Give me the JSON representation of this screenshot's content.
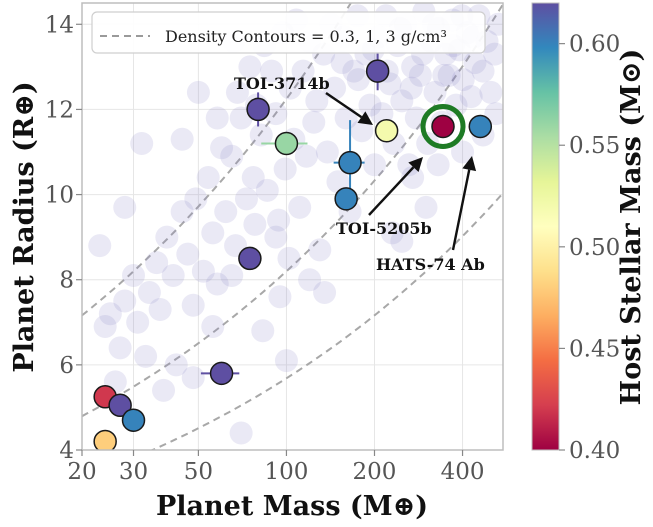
{
  "chart_data": {
    "type": "scatter",
    "title": "",
    "xlabel": "Planet Mass (M⊕)",
    "ylabel": "Planet Radius (R⊕)",
    "x_scale": "log",
    "xlim": [
      20,
      550
    ],
    "ylim": [
      4,
      14.5
    ],
    "x_ticks": [
      20,
      30,
      50,
      100,
      200,
      400
    ],
    "x_tick_labels": [
      "20",
      "30",
      "50",
      "100",
      "200",
      "400"
    ],
    "y_ticks": [
      4,
      6,
      8,
      10,
      12,
      14
    ],
    "y_tick_labels": [
      "4",
      "6",
      "8",
      "10",
      "12",
      "14"
    ],
    "grid": true,
    "legend_position": "top",
    "legend_text": "Density Contours = 0.3, 1, 3 g/cm³",
    "density_contours": [
      0.3,
      1,
      3
    ],
    "colorbar": {
      "label": "Host Stellar Mass (M⊙)",
      "range": [
        0.4,
        0.62
      ],
      "ticks": [
        0.4,
        0.45,
        0.5,
        0.55,
        0.6
      ],
      "tick_labels": [
        "0.40",
        "0.45",
        "0.50",
        "0.55",
        "0.60"
      ],
      "colors": [
        "#9e0142",
        "#d53e4f",
        "#f46d43",
        "#fdae61",
        "#fee08b",
        "#ffffbf",
        "#e6f598",
        "#abdda4",
        "#66c2a5",
        "#3288bd",
        "#5e4fa2"
      ]
    },
    "background_population_color": "#8a84c8",
    "background_population": [
      [
        23,
        8.8
      ],
      [
        24,
        6.9
      ],
      [
        25,
        7.2
      ],
      [
        27,
        6.4
      ],
      [
        28,
        7.5
      ],
      [
        30,
        8.1
      ],
      [
        31,
        7.0
      ],
      [
        33,
        6.2
      ],
      [
        34,
        7.7
      ],
      [
        36,
        8.4
      ],
      [
        37,
        7.3
      ],
      [
        39,
        9.0
      ],
      [
        41,
        8.1
      ],
      [
        42,
        6.0
      ],
      [
        44,
        9.6
      ],
      [
        46,
        8.6
      ],
      [
        48,
        7.4
      ],
      [
        49,
        9.9
      ],
      [
        52,
        8.2
      ],
      [
        54,
        10.4
      ],
      [
        56,
        9.1
      ],
      [
        58,
        7.9
      ],
      [
        60,
        11.1
      ],
      [
        62,
        9.6
      ],
      [
        65,
        10.9
      ],
      [
        67,
        8.8
      ],
      [
        68,
        12.4
      ],
      [
        70,
        11.8
      ],
      [
        73,
        9.9
      ],
      [
        75,
        13.0
      ],
      [
        77,
        10.4
      ],
      [
        79,
        12.1
      ],
      [
        82,
        11.4
      ],
      [
        84,
        13.5
      ],
      [
        86,
        10.1
      ],
      [
        89,
        12.9
      ],
      [
        92,
        11.9
      ],
      [
        94,
        9.4
      ],
      [
        97,
        13.8
      ],
      [
        99,
        10.6
      ],
      [
        103,
        12.5
      ],
      [
        106,
        11.3
      ],
      [
        108,
        14.1
      ],
      [
        111,
        9.7
      ],
      [
        114,
        12.9
      ],
      [
        117,
        10.9
      ],
      [
        120,
        13.6
      ],
      [
        124,
        11.7
      ],
      [
        127,
        12.2
      ],
      [
        130,
        8.7
      ],
      [
        134,
        13.3
      ],
      [
        138,
        11.0
      ],
      [
        142,
        14.0
      ],
      [
        146,
        12.5
      ],
      [
        150,
        10.3
      ],
      [
        155,
        13.1
      ],
      [
        160,
        11.8
      ],
      [
        165,
        9.6
      ],
      [
        170,
        12.9
      ],
      [
        175,
        14.2
      ],
      [
        181,
        11.5
      ],
      [
        187,
        13.3
      ],
      [
        193,
        12.1
      ],
      [
        200,
        10.7
      ],
      [
        206,
        13.7
      ],
      [
        212,
        11.9
      ],
      [
        219,
        14.2
      ],
      [
        226,
        12.6
      ],
      [
        233,
        11.2
      ],
      [
        240,
        13.5
      ],
      [
        248,
        12.2
      ],
      [
        255,
        14.0
      ],
      [
        262,
        10.7
      ],
      [
        270,
        13.0
      ],
      [
        278,
        11.8
      ],
      [
        287,
        12.8
      ],
      [
        295,
        14.3
      ],
      [
        304,
        11.2
      ],
      [
        313,
        13.6
      ],
      [
        322,
        12.4
      ],
      [
        331,
        13.9
      ],
      [
        340,
        11.7
      ],
      [
        350,
        13.3
      ],
      [
        360,
        12.8
      ],
      [
        370,
        14.1
      ],
      [
        380,
        12.1
      ],
      [
        390,
        13.4
      ],
      [
        402,
        12.7
      ],
      [
        415,
        13.8
      ],
      [
        428,
        12.3
      ],
      [
        441,
        13.1
      ],
      [
        455,
        14.2
      ],
      [
        470,
        12.9
      ],
      [
        485,
        13.6
      ],
      [
        500,
        12.4
      ],
      [
        515,
        13.3
      ],
      [
        530,
        14.0
      ],
      [
        158,
        13.7
      ],
      [
        176,
        12.7
      ],
      [
        198,
        13.4
      ],
      [
        221,
        12.9
      ],
      [
        245,
        13.9
      ],
      [
        267,
        12.5
      ],
      [
        292,
        13.3
      ],
      [
        318,
        14.0
      ],
      [
        345,
        12.8
      ],
      [
        372,
        13.5
      ],
      [
        398,
        14.2
      ],
      [
        436,
        13.7
      ],
      [
        66,
        13.6
      ],
      [
        58,
        11.8
      ],
      [
        50,
        12.4
      ],
      [
        44,
        11.3
      ],
      [
        92,
        9.0
      ],
      [
        102,
        8.5
      ],
      [
        120,
        8.0
      ],
      [
        135,
        7.7
      ],
      [
        95,
        7.6
      ],
      [
        78,
        9.3
      ],
      [
        65,
        8.1
      ],
      [
        56,
        6.9
      ],
      [
        70,
        4.4
      ],
      [
        83,
        6.8
      ],
      [
        100,
        6.1
      ],
      [
        48,
        5.7
      ],
      [
        38,
        5.4
      ],
      [
        26,
        5.6
      ],
      [
        28,
        9.7
      ],
      [
        32,
        11.2
      ],
      [
        230,
        9.1
      ],
      [
        300,
        9.7
      ],
      [
        270,
        10.4
      ],
      [
        248,
        8.9
      ],
      [
        330,
        10.7
      ],
      [
        400,
        11.0
      ],
      [
        470,
        11.4
      ],
      [
        520,
        11.9
      ]
    ],
    "series": [
      {
        "label": "",
        "x": 24,
        "y": 5.25,
        "host_mass": 0.42
      },
      {
        "label": "",
        "x": 24,
        "y": 4.2,
        "host_mass": 0.48
      },
      {
        "label": "",
        "x": 27,
        "y": 5.05,
        "host_mass": 0.62
      },
      {
        "label": "",
        "x": 30,
        "y": 4.7,
        "host_mass": 0.6
      },
      {
        "label": "",
        "x": 60,
        "y": 5.8,
        "host_mass": 0.62,
        "xerr": 9
      },
      {
        "label": "",
        "x": 75,
        "y": 8.5,
        "host_mass": 0.62
      },
      {
        "label": "",
        "x": 80,
        "y": 12.0,
        "host_mass": 0.62,
        "yerr": 0.4
      },
      {
        "label": "",
        "x": 100,
        "y": 11.2,
        "host_mass": 0.56,
        "xerr": 18
      },
      {
        "label": "",
        "x": 165,
        "y": 10.75,
        "host_mass": 0.6,
        "yerr": 1.0,
        "xerr": 20
      },
      {
        "label": "",
        "x": 160,
        "y": 9.9,
        "host_mass": 0.6
      },
      {
        "label": "",
        "x": 205,
        "y": 12.9,
        "host_mass": 0.62,
        "yerr": 0.45
      },
      {
        "label": "TOI-3714b",
        "x": 220,
        "y": 11.5,
        "host_mass": 0.52
      },
      {
        "label": "TOI-5205b",
        "x": 343,
        "y": 11.6,
        "host_mass": 0.4,
        "highlight": true
      },
      {
        "label": "HATS-74 Ab",
        "x": 460,
        "y": 11.6,
        "host_mass": 0.6
      }
    ],
    "annotations": [
      {
        "text": "TOI-3714b",
        "target": "TOI-3714b"
      },
      {
        "text": "TOI-5205b",
        "target": "TOI-5205b"
      },
      {
        "text": "HATS-74 Ab",
        "target": "HATS-74 Ab"
      }
    ]
  }
}
